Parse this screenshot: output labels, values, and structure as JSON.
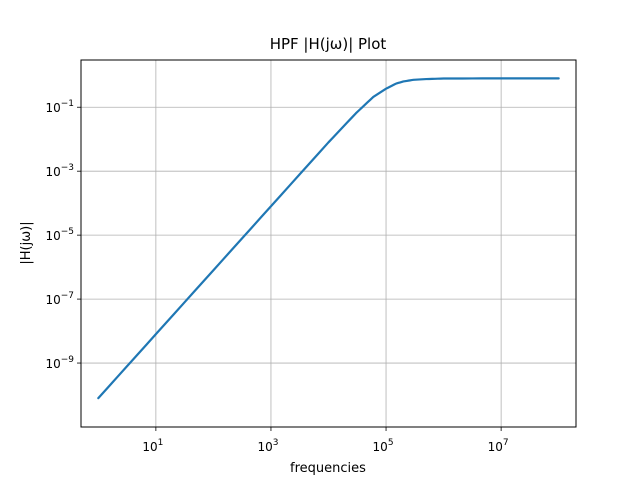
{
  "chart_data": {
    "type": "line",
    "title": "HPF |H(jω)| Plot",
    "xlabel": "frequencies",
    "ylabel": "|H(jω)|",
    "xscale": "log",
    "yscale": "log",
    "xlim": [
      0.5,
      200000000
    ],
    "ylim": [
      1e-11,
      3
    ],
    "grid": true,
    "colors": {
      "line": "#1f77b4",
      "grid": "#b0b0b0",
      "axes": "#000000"
    },
    "x_ticks": [
      {
        "value": 10,
        "base": "10",
        "exp": "1"
      },
      {
        "value": 1000,
        "base": "10",
        "exp": "3"
      },
      {
        "value": 100000,
        "base": "10",
        "exp": "5"
      },
      {
        "value": 10000000,
        "base": "10",
        "exp": "7"
      }
    ],
    "y_ticks": [
      {
        "value": 1e-09,
        "base": "10",
        "exp": "−9"
      },
      {
        "value": 1e-07,
        "base": "10",
        "exp": "−7"
      },
      {
        "value": 1e-05,
        "base": "10",
        "exp": "−5"
      },
      {
        "value": 0.001,
        "base": "10",
        "exp": "−3"
      },
      {
        "value": 0.1,
        "base": "10",
        "exp": "−1"
      }
    ],
    "series": [
      {
        "x": [
          1,
          10,
          100,
          1000,
          10000,
          30000,
          60000,
          100000,
          150000,
          200000,
          300000,
          500000,
          1000000,
          10000000,
          100000000
        ],
        "y": [
          8e-11,
          8e-09,
          8e-07,
          8e-05,
          0.008,
          0.065,
          0.21,
          0.38,
          0.55,
          0.64,
          0.72,
          0.76,
          0.79,
          0.8,
          0.8
        ]
      }
    ]
  }
}
